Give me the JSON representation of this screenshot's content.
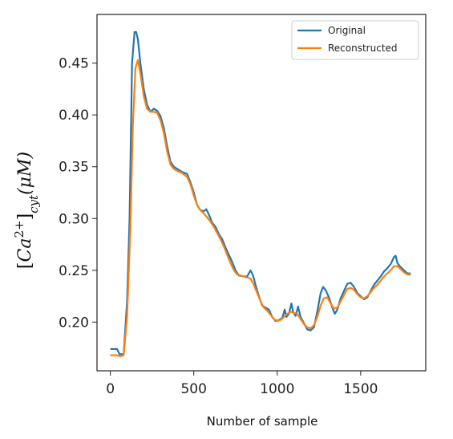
{
  "chart_data": {
    "type": "line",
    "xlabel": "Number of sample",
    "ylabel": "[Ca²⁺]cyt(μM)",
    "ylabel_parts": {
      "bracket_open": "[",
      "species": "Ca",
      "charge": "2+",
      "bracket_close": "]",
      "subscript": "cyt",
      "unit": "(μM)"
    },
    "xlim": [
      -80,
      1890
    ],
    "ylim": [
      0.153,
      0.497
    ],
    "xticks": [
      0,
      500,
      1000,
      1500
    ],
    "xtick_labels": [
      "0",
      "500",
      "1000",
      "1500"
    ],
    "yticks": [
      0.2,
      0.25,
      0.3,
      0.35,
      0.4,
      0.45
    ],
    "ytick_labels": [
      "0.20",
      "0.25",
      "0.30",
      "0.35",
      "0.40",
      "0.45"
    ],
    "grid": false,
    "legend_position": "top-right",
    "series": [
      {
        "name": "Original",
        "color": "#1f77b4",
        "points": [
          [
            0,
            0.174
          ],
          [
            40,
            0.174
          ],
          [
            55,
            0.169
          ],
          [
            80,
            0.169
          ],
          [
            100,
            0.22
          ],
          [
            115,
            0.3
          ],
          [
            130,
            0.45
          ],
          [
            145,
            0.48
          ],
          [
            155,
            0.48
          ],
          [
            165,
            0.473
          ],
          [
            180,
            0.45
          ],
          [
            200,
            0.425
          ],
          [
            220,
            0.41
          ],
          [
            240,
            0.403
          ],
          [
            260,
            0.406
          ],
          [
            280,
            0.404
          ],
          [
            300,
            0.399
          ],
          [
            320,
            0.388
          ],
          [
            340,
            0.37
          ],
          [
            360,
            0.355
          ],
          [
            380,
            0.35
          ],
          [
            400,
            0.348
          ],
          [
            430,
            0.345
          ],
          [
            460,
            0.343
          ],
          [
            480,
            0.335
          ],
          [
            500,
            0.325
          ],
          [
            520,
            0.313
          ],
          [
            540,
            0.308
          ],
          [
            560,
            0.307
          ],
          [
            575,
            0.309
          ],
          [
            590,
            0.304
          ],
          [
            610,
            0.296
          ],
          [
            630,
            0.292
          ],
          [
            650,
            0.285
          ],
          [
            670,
            0.28
          ],
          [
            690,
            0.272
          ],
          [
            710,
            0.265
          ],
          [
            730,
            0.258
          ],
          [
            750,
            0.25
          ],
          [
            770,
            0.245
          ],
          [
            800,
            0.244
          ],
          [
            820,
            0.244
          ],
          [
            840,
            0.25
          ],
          [
            855,
            0.245
          ],
          [
            870,
            0.236
          ],
          [
            890,
            0.225
          ],
          [
            910,
            0.216
          ],
          [
            930,
            0.214
          ],
          [
            950,
            0.212
          ],
          [
            970,
            0.205
          ],
          [
            990,
            0.201
          ],
          [
            1010,
            0.202
          ],
          [
            1030,
            0.204
          ],
          [
            1045,
            0.212
          ],
          [
            1055,
            0.205
          ],
          [
            1070,
            0.208
          ],
          [
            1085,
            0.218
          ],
          [
            1095,
            0.21
          ],
          [
            1110,
            0.206
          ],
          [
            1125,
            0.215
          ],
          [
            1140,
            0.205
          ],
          [
            1160,
            0.199
          ],
          [
            1180,
            0.193
          ],
          [
            1200,
            0.192
          ],
          [
            1220,
            0.195
          ],
          [
            1240,
            0.21
          ],
          [
            1260,
            0.228
          ],
          [
            1275,
            0.234
          ],
          [
            1290,
            0.231
          ],
          [
            1310,
            0.224
          ],
          [
            1330,
            0.214
          ],
          [
            1345,
            0.208
          ],
          [
            1360,
            0.212
          ],
          [
            1380,
            0.223
          ],
          [
            1400,
            0.23
          ],
          [
            1420,
            0.237
          ],
          [
            1440,
            0.238
          ],
          [
            1460,
            0.234
          ],
          [
            1480,
            0.228
          ],
          [
            1500,
            0.225
          ],
          [
            1520,
            0.222
          ],
          [
            1540,
            0.224
          ],
          [
            1560,
            0.23
          ],
          [
            1580,
            0.236
          ],
          [
            1600,
            0.24
          ],
          [
            1620,
            0.244
          ],
          [
            1640,
            0.249
          ],
          [
            1660,
            0.252
          ],
          [
            1680,
            0.256
          ],
          [
            1700,
            0.263
          ],
          [
            1710,
            0.264
          ],
          [
            1720,
            0.257
          ],
          [
            1740,
            0.253
          ],
          [
            1760,
            0.25
          ],
          [
            1780,
            0.247
          ],
          [
            1800,
            0.247
          ]
        ]
      },
      {
        "name": "Reconstructed",
        "color": "#ff7f0e",
        "points": [
          [
            0,
            0.168
          ],
          [
            40,
            0.168
          ],
          [
            60,
            0.167
          ],
          [
            80,
            0.168
          ],
          [
            100,
            0.205
          ],
          [
            120,
            0.29
          ],
          [
            135,
            0.39
          ],
          [
            150,
            0.445
          ],
          [
            165,
            0.453
          ],
          [
            180,
            0.44
          ],
          [
            200,
            0.418
          ],
          [
            220,
            0.406
          ],
          [
            240,
            0.403
          ],
          [
            260,
            0.403
          ],
          [
            280,
            0.402
          ],
          [
            300,
            0.395
          ],
          [
            320,
            0.383
          ],
          [
            340,
            0.365
          ],
          [
            360,
            0.352
          ],
          [
            380,
            0.348
          ],
          [
            400,
            0.346
          ],
          [
            430,
            0.344
          ],
          [
            460,
            0.34
          ],
          [
            480,
            0.333
          ],
          [
            500,
            0.322
          ],
          [
            520,
            0.313
          ],
          [
            540,
            0.308
          ],
          [
            560,
            0.305
          ],
          [
            580,
            0.301
          ],
          [
            600,
            0.297
          ],
          [
            620,
            0.292
          ],
          [
            640,
            0.286
          ],
          [
            660,
            0.28
          ],
          [
            680,
            0.273
          ],
          [
            700,
            0.265
          ],
          [
            720,
            0.257
          ],
          [
            740,
            0.25
          ],
          [
            760,
            0.246
          ],
          [
            780,
            0.245
          ],
          [
            800,
            0.244
          ],
          [
            820,
            0.243
          ],
          [
            840,
            0.242
          ],
          [
            860,
            0.236
          ],
          [
            880,
            0.228
          ],
          [
            900,
            0.22
          ],
          [
            920,
            0.214
          ],
          [
            940,
            0.211
          ],
          [
            960,
            0.207
          ],
          [
            980,
            0.203
          ],
          [
            1000,
            0.201
          ],
          [
            1020,
            0.202
          ],
          [
            1040,
            0.205
          ],
          [
            1060,
            0.208
          ],
          [
            1080,
            0.21
          ],
          [
            1100,
            0.209
          ],
          [
            1120,
            0.208
          ],
          [
            1140,
            0.203
          ],
          [
            1160,
            0.198
          ],
          [
            1180,
            0.195
          ],
          [
            1200,
            0.194
          ],
          [
            1220,
            0.197
          ],
          [
            1240,
            0.205
          ],
          [
            1260,
            0.216
          ],
          [
            1280,
            0.223
          ],
          [
            1300,
            0.224
          ],
          [
            1320,
            0.218
          ],
          [
            1340,
            0.213
          ],
          [
            1360,
            0.214
          ],
          [
            1380,
            0.22
          ],
          [
            1400,
            0.226
          ],
          [
            1420,
            0.232
          ],
          [
            1440,
            0.233
          ],
          [
            1460,
            0.231
          ],
          [
            1480,
            0.227
          ],
          [
            1500,
            0.224
          ],
          [
            1520,
            0.223
          ],
          [
            1540,
            0.225
          ],
          [
            1560,
            0.229
          ],
          [
            1580,
            0.233
          ],
          [
            1600,
            0.236
          ],
          [
            1620,
            0.24
          ],
          [
            1640,
            0.244
          ],
          [
            1660,
            0.247
          ],
          [
            1680,
            0.25
          ],
          [
            1700,
            0.254
          ],
          [
            1720,
            0.254
          ],
          [
            1740,
            0.251
          ],
          [
            1760,
            0.248
          ],
          [
            1780,
            0.246
          ],
          [
            1800,
            0.246
          ]
        ]
      }
    ]
  }
}
